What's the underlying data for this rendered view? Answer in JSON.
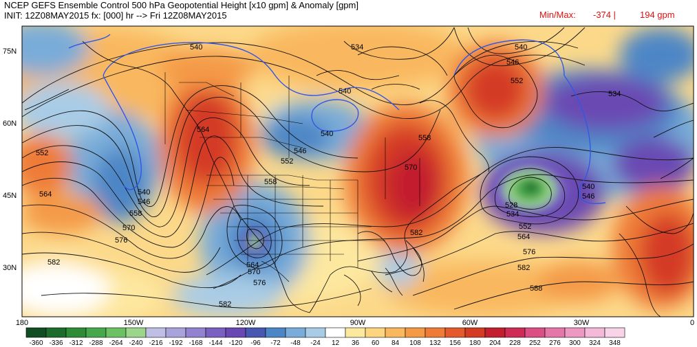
{
  "header": {
    "line1": "NCEP GEFS Ensemble Control 500 hPa Geopotential Height [x10 gpm] & Anomaly [gpm]",
    "line2": "INIT: 12Z08MAY2015 fx: [000] hr --> Fri 12Z08MAY2015",
    "minmax_label": "Min/Max:",
    "min_value": "-374 |",
    "max_value": "194 gpm"
  },
  "axes": {
    "lat_labels": [
      "75N",
      "60N",
      "45N",
      "30N"
    ],
    "lon_labels": [
      "180",
      "150W",
      "120W",
      "90W",
      "60W",
      "30W",
      "0"
    ]
  },
  "contour_labels": [
    "540",
    "534",
    "540",
    "546",
    "552",
    "540",
    "564",
    "552",
    "564",
    "540",
    "546",
    "558",
    "570",
    "576",
    "582",
    "546",
    "552",
    "540",
    "558",
    "558",
    "570",
    "582",
    "564",
    "570",
    "576",
    "582",
    "534",
    "528",
    "534",
    "540",
    "546",
    "552",
    "564",
    "576",
    "582",
    "588"
  ],
  "colorbar": {
    "labels": [
      "-360",
      "-336",
      "-312",
      "-288",
      "-264",
      "-240",
      "-216",
      "-192",
      "-168",
      "-144",
      "-120",
      "-96",
      "-72",
      "-48",
      "-24",
      "12",
      "36",
      "60",
      "84",
      "108",
      "132",
      "156",
      "180",
      "204",
      "228",
      "252",
      "276",
      "300",
      "324",
      "348"
    ],
    "colors": [
      "#114d22",
      "#1d6c2c",
      "#2e8b36",
      "#46a84b",
      "#6cc262",
      "#9bd68b",
      "#bfbfe6",
      "#a9a3dc",
      "#9282cf",
      "#7a60c0",
      "#6a48b3",
      "#4658b0",
      "#4d86c6",
      "#79acd8",
      "#a9cce6",
      "#ffffff",
      "#fde8a0",
      "#fcd57e",
      "#f9b85e",
      "#f49a47",
      "#ee7b38",
      "#e45a2d",
      "#d43b25",
      "#c21e2e",
      "#ce2b57",
      "#da4f84",
      "#e476a8",
      "#ed97c3",
      "#f4b8d8",
      "#f9d3e7"
    ]
  },
  "colors": {
    "minmax": "#e01010",
    "blue_contour": "#3057e6"
  }
}
